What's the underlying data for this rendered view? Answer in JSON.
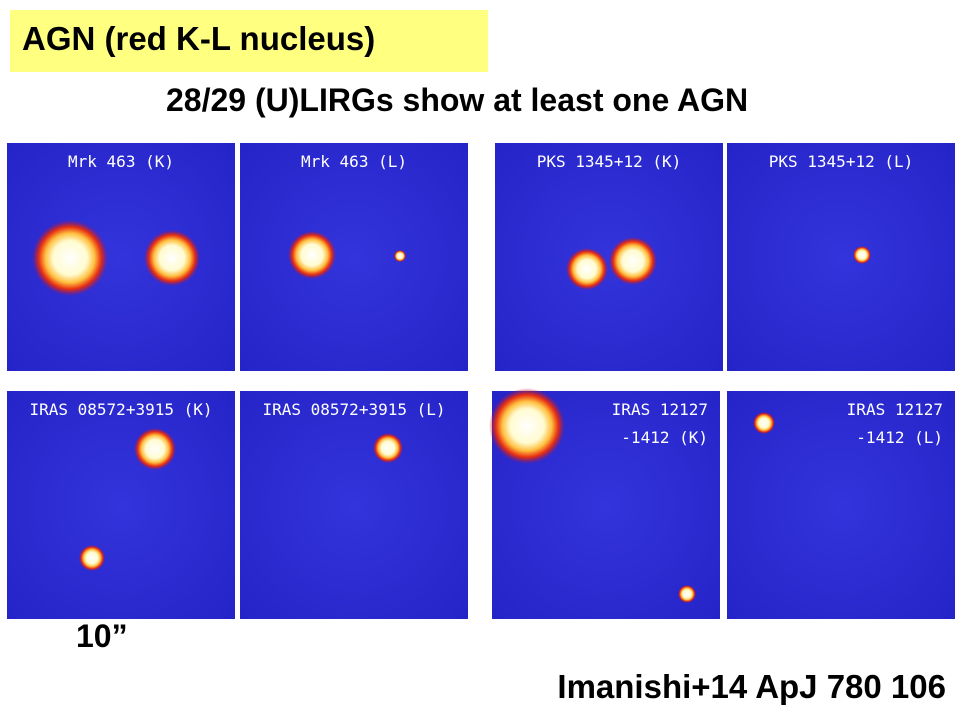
{
  "header": {
    "title": "AGN (red K-L nucleus)",
    "subtitle": "28/29 (U)LIRGs show at least one AGN"
  },
  "panels": [
    {
      "label": [
        "Mrk 463 (K)"
      ]
    },
    {
      "label": [
        "Mrk 463 (L)"
      ]
    },
    {
      "label": [
        "PKS 1345+12 (K)"
      ]
    },
    {
      "label": [
        "PKS 1345+12 (L)"
      ]
    },
    {
      "label": [
        "IRAS 08572+3915 (K)"
      ]
    },
    {
      "label": [
        "IRAS 08572+3915 (L)"
      ]
    },
    {
      "label": [
        "IRAS 12127",
        "-1412 (K)"
      ]
    },
    {
      "label": [
        "IRAS 12127",
        "-1412 (L)"
      ]
    }
  ],
  "scale_label": "10”",
  "citation": "Imanishi+14 ApJ 780 106"
}
